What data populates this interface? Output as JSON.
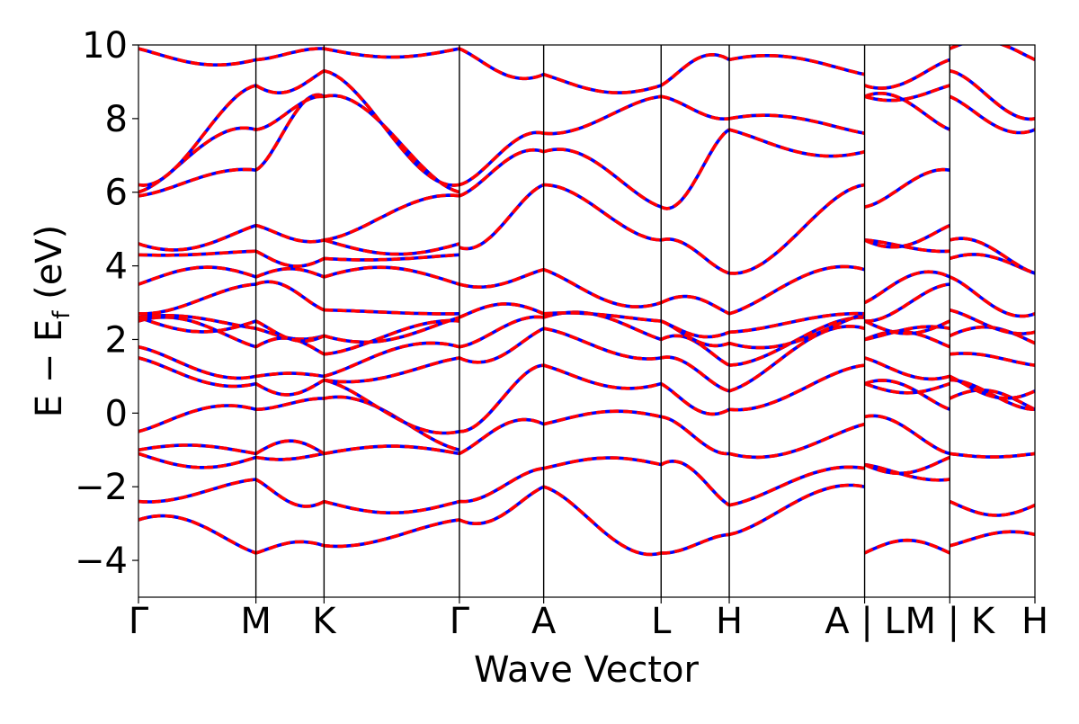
{
  "chart_data": {
    "type": "line",
    "title": "",
    "xlabel": "Wave Vector",
    "ylabel": "E − E_f (eV)",
    "ylabel_parts": {
      "main": "E − E",
      "sub": "f",
      "unit": " (eV)"
    },
    "ylim": [
      -5,
      10
    ],
    "yticks": [
      {
        "value": -4,
        "label": "−4"
      },
      {
        "value": -2,
        "label": "−2"
      },
      {
        "value": 0,
        "label": "0"
      },
      {
        "value": 2,
        "label": "2"
      },
      {
        "value": 4,
        "label": "4"
      },
      {
        "value": 6,
        "label": "6"
      },
      {
        "value": 8,
        "label": "8"
      },
      {
        "value": 10,
        "label": "10"
      }
    ],
    "kpath_xlim": [
      0,
      1
    ],
    "kpoints": [
      {
        "pos": 0.0,
        "label": "Γ"
      },
      {
        "pos": 0.131,
        "label": "M"
      },
      {
        "pos": 0.207,
        "label": "K"
      },
      {
        "pos": 0.358,
        "label": "Γ"
      },
      {
        "pos": 0.452,
        "label": "A"
      },
      {
        "pos": 0.583,
        "label": "L"
      },
      {
        "pos": 0.659,
        "label": "H"
      },
      {
        "pos": 0.81,
        "label": "A | L"
      },
      {
        "pos": 0.905,
        "label": "M | K"
      },
      {
        "pos": 1.0,
        "label": "H"
      }
    ],
    "grid": false,
    "legend": "none",
    "series_colors": {
      "primary": "#ff0000",
      "overlay": "#0000ff"
    },
    "bands_sampled": [
      {
        "segment": "Γ-M",
        "x": [
          0.0,
          0.131
        ],
        "energies_start": [
          -2.9,
          -2.4,
          -1.1,
          -1.0,
          -0.5,
          1.5,
          1.8,
          2.5,
          2.6,
          2.7,
          3.5,
          4.3,
          4.6,
          5.9,
          6.0,
          6.2,
          9.9
        ],
        "energies_end": [
          -3.8,
          -1.8,
          -1.2,
          -1.1,
          0.1,
          0.8,
          1.0,
          1.8,
          2.3,
          2.5,
          3.5,
          3.7,
          4.4,
          5.1,
          6.6,
          7.7,
          8.9,
          9.6
        ]
      },
      {
        "segment": "M-K",
        "x": [
          0.131,
          0.207
        ],
        "energies_start": [
          -3.8,
          -1.8,
          -1.2,
          -1.1,
          0.1,
          0.8,
          1.0,
          1.8,
          2.3,
          2.5,
          3.5,
          3.7,
          4.4,
          5.1,
          6.6,
          7.7,
          8.9,
          9.6
        ],
        "energies_end": [
          -3.6,
          -2.4,
          -1.1,
          0.4,
          0.9,
          1.0,
          1.6,
          2.1,
          2.8,
          3.7,
          4.2,
          4.7,
          8.6,
          9.3,
          9.9
        ]
      },
      {
        "segment": "K-Γ",
        "x": [
          0.207,
          0.358
        ],
        "energies_start": [
          -3.6,
          -2.4,
          -1.1,
          0.4,
          0.9,
          1.0,
          1.6,
          2.1,
          2.8,
          3.7,
          4.2,
          4.7,
          8.6,
          9.3,
          9.9
        ],
        "energies_end": [
          -2.9,
          -2.4,
          -1.1,
          -1.0,
          -0.5,
          1.5,
          1.8,
          2.5,
          2.6,
          2.7,
          3.5,
          4.3,
          4.6,
          5.9,
          6.0,
          6.2,
          9.9
        ]
      },
      {
        "segment": "Γ-A",
        "x": [
          0.358,
          0.452
        ],
        "energies_start": [
          -2.9,
          -2.4,
          -1.1,
          -0.5,
          1.5,
          1.8,
          2.6,
          3.5,
          4.5,
          5.9,
          6.2,
          9.9
        ],
        "energies_end": [
          -2.0,
          -1.5,
          -0.3,
          1.3,
          2.3,
          2.6,
          2.7,
          3.9,
          6.2,
          7.1,
          7.6,
          9.2
        ]
      },
      {
        "segment": "A-L",
        "x": [
          0.452,
          0.583
        ],
        "energies_start": [
          -2.0,
          -1.5,
          -0.3,
          1.3,
          2.3,
          2.6,
          2.7,
          3.9,
          6.2,
          7.1,
          7.6,
          9.2
        ],
        "energies_end": [
          -3.8,
          -1.4,
          -0.1,
          0.8,
          1.5,
          2.0,
          2.5,
          3.0,
          4.7,
          5.6,
          8.6,
          8.9
        ]
      },
      {
        "segment": "L-H",
        "x": [
          0.583,
          0.659
        ],
        "energies_start": [
          -3.8,
          -1.4,
          -0.1,
          0.8,
          1.5,
          2.0,
          2.5,
          3.0,
          4.7,
          5.6,
          8.6,
          8.9
        ],
        "energies_end": [
          -3.3,
          -2.5,
          -1.1,
          0.1,
          0.6,
          1.3,
          1.9,
          2.2,
          2.7,
          3.8,
          7.7,
          8.0,
          9.6
        ]
      },
      {
        "segment": "H-A",
        "x": [
          0.659,
          0.81
        ],
        "energies_start": [
          -3.3,
          -2.5,
          -1.1,
          0.1,
          0.6,
          1.3,
          1.9,
          2.2,
          2.7,
          3.8,
          7.7,
          8.0,
          9.6
        ],
        "energies_end": [
          -2.0,
          -1.5,
          -0.3,
          1.3,
          2.3,
          2.6,
          2.7,
          3.9,
          6.2,
          7.1,
          7.6,
          9.2
        ]
      },
      {
        "segment": "L-M",
        "x": [
          0.81,
          0.905
        ],
        "energies_start": [
          -3.8,
          -1.4,
          -0.1,
          0.8,
          1.5,
          2.0,
          2.5,
          3.0,
          4.7,
          5.6,
          8.6,
          8.9
        ],
        "energies_end": [
          -3.8,
          -1.8,
          -1.2,
          -1.1,
          0.1,
          0.8,
          1.0,
          1.8,
          2.3,
          2.5,
          3.5,
          3.7,
          4.4,
          5.1,
          6.6,
          7.7,
          8.9,
          9.6
        ]
      },
      {
        "segment": "K-H",
        "x": [
          0.905,
          1.0
        ],
        "energies_start": [
          -3.6,
          -2.4,
          -1.1,
          0.4,
          0.9,
          1.0,
          1.6,
          2.1,
          2.8,
          3.7,
          4.2,
          4.7,
          8.6,
          9.3,
          9.9
        ],
        "energies_end": [
          -3.3,
          -2.5,
          -1.1,
          0.1,
          0.6,
          1.3,
          1.9,
          2.2,
          2.7,
          3.8,
          7.7,
          8.0,
          9.6
        ]
      }
    ]
  }
}
